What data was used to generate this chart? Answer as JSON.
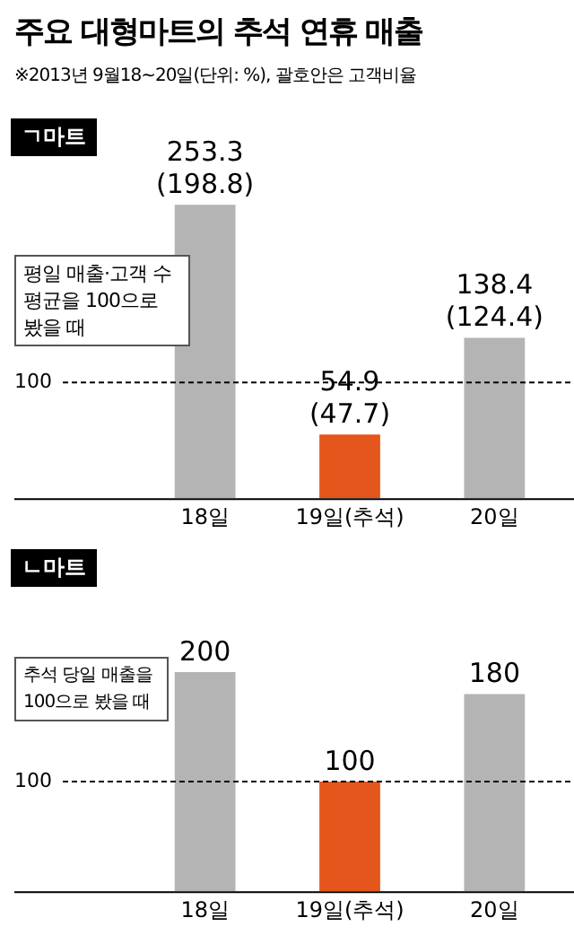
{
  "chart_data": [
    {
      "type": "other",
      "title": "주요 대형마트의 추석 연휴 매출",
      "subtitle": "※2013년 9월18~20일(단위: %), 괄호안은 고객비율"
    },
    {
      "type": "bar",
      "title": "ㄱ마트",
      "categories": [
        "18일",
        "19일(추석)",
        "20일"
      ],
      "values": [
        253.3,
        54.9,
        138.4
      ],
      "colors": [
        "#b4b4b4",
        "#e4561c",
        "#b4b4b4"
      ],
      "value_labels": [
        "253.3 (198.8)",
        "54.9 (47.7)",
        "138.4 (124.4)"
      ],
      "tick_labels": "x",
      "grid": false,
      "legend": false,
      "ref_lines": [
        {
          "axis": "y",
          "value": 100,
          "label": "100",
          "color": "#000000",
          "line_style": "dashed"
        }
      ],
      "annotations": [
        "평일 매출·고객 수 평균을 100으로 봤을 때"
      ]
    },
    {
      "type": "bar",
      "title": "ㄴ마트",
      "categories": [
        "18일",
        "19일(추석)",
        "20일"
      ],
      "values": [
        200,
        100,
        180
      ],
      "colors": [
        "#b4b4b4",
        "#e4561c",
        "#b4b4b4"
      ],
      "data_labels": true,
      "tick_labels": "x",
      "grid": false,
      "legend": false,
      "ref_lines": [
        {
          "axis": "y",
          "value": 100,
          "label": "100",
          "color": "#000000",
          "line_style": "dashed"
        }
      ],
      "annotations": [
        "추석 당일 매출을 100으로 봤을 때"
      ]
    }
  ]
}
